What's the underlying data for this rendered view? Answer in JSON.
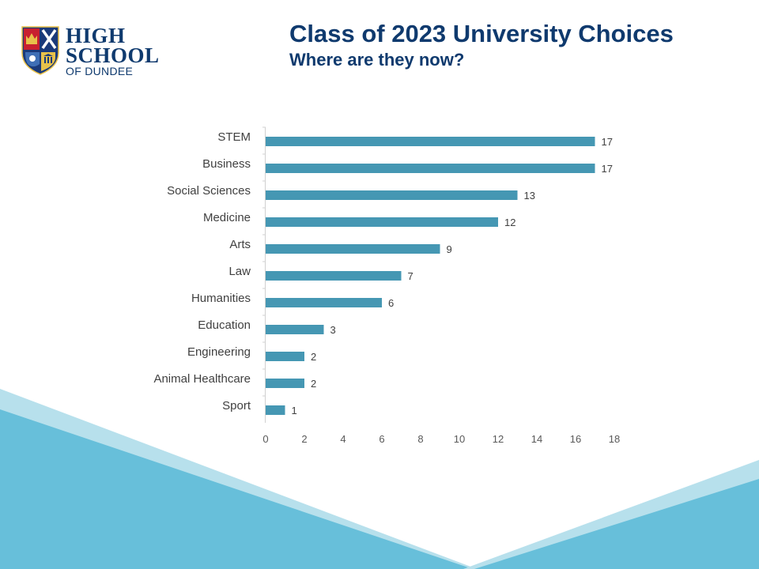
{
  "header": {
    "title": "Class of 2023 University Choices",
    "subtitle": "Where are they now?"
  },
  "logo": {
    "line1": "HIGH",
    "line2": "SCHOOL",
    "line3": "OF DUNDEE"
  },
  "colors": {
    "bar": "#4597b3",
    "navy": "#0f3a6e",
    "wave_light": "#b7e0ec",
    "wave_dark": "#67bfda"
  },
  "chart_data": {
    "type": "bar",
    "orientation": "horizontal",
    "categories": [
      "STEM",
      "Business",
      "Social Sciences",
      "Medicine",
      "Arts",
      "Law",
      "Humanities",
      "Education",
      "Engineering",
      "Animal Healthcare",
      "Sport"
    ],
    "values": [
      17,
      17,
      13,
      12,
      9,
      7,
      6,
      3,
      2,
      2,
      1
    ],
    "xlim": [
      0,
      18
    ],
    "xticks": [
      0,
      2,
      4,
      6,
      8,
      10,
      12,
      14,
      16,
      18
    ],
    "data_labels": true,
    "grid": false,
    "legend": "none"
  }
}
